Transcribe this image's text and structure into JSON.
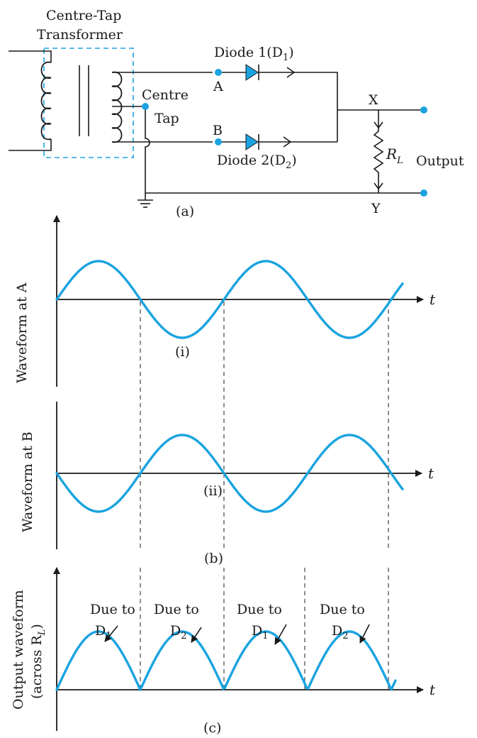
{
  "colors": {
    "wave": "#1aa3e0",
    "ink": "#1a1a1a",
    "terminal": "#1aa3e0",
    "transformer_box": "#1aa3e0"
  },
  "circuit": {
    "transformer_label_1": "Centre-Tap",
    "transformer_label_2": "Transformer",
    "centre_label_1": "Centre",
    "centre_label_2": "Tap",
    "node_a": "A",
    "node_b": "B",
    "node_x": "X",
    "node_y": "Y",
    "diode1": "Diode 1(D",
    "diode1_sub": "1",
    "diode1_close": ")",
    "diode2": "Diode 2(D",
    "diode2_sub": "2",
    "diode2_close": ")",
    "resistor": "R",
    "resistor_sub": "L",
    "output": "Output",
    "caption": "(a)"
  },
  "waveform_a": {
    "axis_label": "Waveform at A",
    "t_label": "t",
    "caption": "(i)"
  },
  "waveform_b": {
    "axis_label": "Waveform at B",
    "t_label": "t",
    "caption": "(ii)"
  },
  "panel_b_caption": "(b)",
  "output_waveform": {
    "axis_label_1": "Output waveform",
    "axis_label_2": "(across R",
    "axis_label_2_sub": "L",
    "axis_label_2_close": ")",
    "t_label": "t",
    "caption": "(c)",
    "humps": [
      {
        "line1": "Due to",
        "line2": "D",
        "sub": "1"
      },
      {
        "line1": "Due to",
        "line2": "D",
        "sub": "2"
      },
      {
        "line1": "Due to",
        "line2": "D",
        "sub": "1"
      },
      {
        "line1": "Due to",
        "line2": "D",
        "sub": "2"
      }
    ]
  }
}
